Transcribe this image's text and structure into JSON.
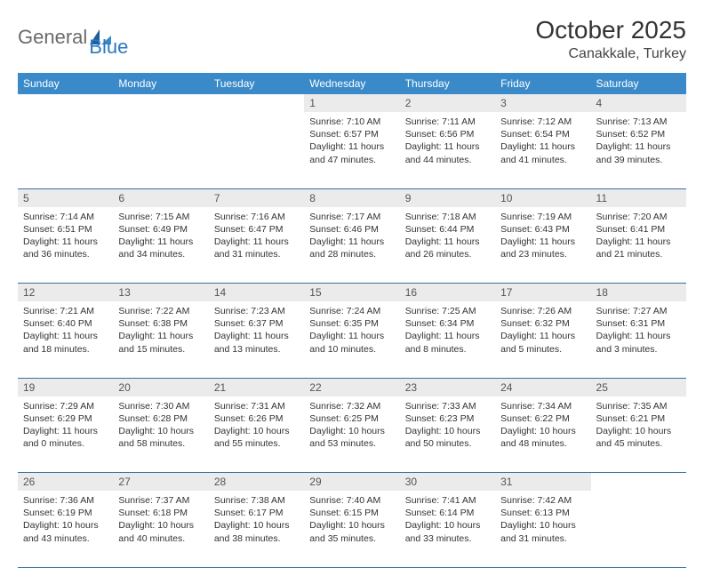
{
  "logo": {
    "word1": "General",
    "word2": "Blue"
  },
  "title": "October 2025",
  "location": "Canakkale, Turkey",
  "colors": {
    "header_bg": "#3a8ac9",
    "header_text": "#ffffff",
    "daynum_bg": "#ebebeb",
    "row_border": "#3a6f9e",
    "logo_gray": "#6a6a6a",
    "logo_blue": "#2b78c2"
  },
  "day_headers": [
    "Sunday",
    "Monday",
    "Tuesday",
    "Wednesday",
    "Thursday",
    "Friday",
    "Saturday"
  ],
  "weeks": [
    [
      null,
      null,
      null,
      {
        "n": "1",
        "sunrise": "7:10 AM",
        "sunset": "6:57 PM",
        "daylight": "11 hours and 47 minutes."
      },
      {
        "n": "2",
        "sunrise": "7:11 AM",
        "sunset": "6:56 PM",
        "daylight": "11 hours and 44 minutes."
      },
      {
        "n": "3",
        "sunrise": "7:12 AM",
        "sunset": "6:54 PM",
        "daylight": "11 hours and 41 minutes."
      },
      {
        "n": "4",
        "sunrise": "7:13 AM",
        "sunset": "6:52 PM",
        "daylight": "11 hours and 39 minutes."
      }
    ],
    [
      {
        "n": "5",
        "sunrise": "7:14 AM",
        "sunset": "6:51 PM",
        "daylight": "11 hours and 36 minutes."
      },
      {
        "n": "6",
        "sunrise": "7:15 AM",
        "sunset": "6:49 PM",
        "daylight": "11 hours and 34 minutes."
      },
      {
        "n": "7",
        "sunrise": "7:16 AM",
        "sunset": "6:47 PM",
        "daylight": "11 hours and 31 minutes."
      },
      {
        "n": "8",
        "sunrise": "7:17 AM",
        "sunset": "6:46 PM",
        "daylight": "11 hours and 28 minutes."
      },
      {
        "n": "9",
        "sunrise": "7:18 AM",
        "sunset": "6:44 PM",
        "daylight": "11 hours and 26 minutes."
      },
      {
        "n": "10",
        "sunrise": "7:19 AM",
        "sunset": "6:43 PM",
        "daylight": "11 hours and 23 minutes."
      },
      {
        "n": "11",
        "sunrise": "7:20 AM",
        "sunset": "6:41 PM",
        "daylight": "11 hours and 21 minutes."
      }
    ],
    [
      {
        "n": "12",
        "sunrise": "7:21 AM",
        "sunset": "6:40 PM",
        "daylight": "11 hours and 18 minutes."
      },
      {
        "n": "13",
        "sunrise": "7:22 AM",
        "sunset": "6:38 PM",
        "daylight": "11 hours and 15 minutes."
      },
      {
        "n": "14",
        "sunrise": "7:23 AM",
        "sunset": "6:37 PM",
        "daylight": "11 hours and 13 minutes."
      },
      {
        "n": "15",
        "sunrise": "7:24 AM",
        "sunset": "6:35 PM",
        "daylight": "11 hours and 10 minutes."
      },
      {
        "n": "16",
        "sunrise": "7:25 AM",
        "sunset": "6:34 PM",
        "daylight": "11 hours and 8 minutes."
      },
      {
        "n": "17",
        "sunrise": "7:26 AM",
        "sunset": "6:32 PM",
        "daylight": "11 hours and 5 minutes."
      },
      {
        "n": "18",
        "sunrise": "7:27 AM",
        "sunset": "6:31 PM",
        "daylight": "11 hours and 3 minutes."
      }
    ],
    [
      {
        "n": "19",
        "sunrise": "7:29 AM",
        "sunset": "6:29 PM",
        "daylight": "11 hours and 0 minutes."
      },
      {
        "n": "20",
        "sunrise": "7:30 AM",
        "sunset": "6:28 PM",
        "daylight": "10 hours and 58 minutes."
      },
      {
        "n": "21",
        "sunrise": "7:31 AM",
        "sunset": "6:26 PM",
        "daylight": "10 hours and 55 minutes."
      },
      {
        "n": "22",
        "sunrise": "7:32 AM",
        "sunset": "6:25 PM",
        "daylight": "10 hours and 53 minutes."
      },
      {
        "n": "23",
        "sunrise": "7:33 AM",
        "sunset": "6:23 PM",
        "daylight": "10 hours and 50 minutes."
      },
      {
        "n": "24",
        "sunrise": "7:34 AM",
        "sunset": "6:22 PM",
        "daylight": "10 hours and 48 minutes."
      },
      {
        "n": "25",
        "sunrise": "7:35 AM",
        "sunset": "6:21 PM",
        "daylight": "10 hours and 45 minutes."
      }
    ],
    [
      {
        "n": "26",
        "sunrise": "7:36 AM",
        "sunset": "6:19 PM",
        "daylight": "10 hours and 43 minutes."
      },
      {
        "n": "27",
        "sunrise": "7:37 AM",
        "sunset": "6:18 PM",
        "daylight": "10 hours and 40 minutes."
      },
      {
        "n": "28",
        "sunrise": "7:38 AM",
        "sunset": "6:17 PM",
        "daylight": "10 hours and 38 minutes."
      },
      {
        "n": "29",
        "sunrise": "7:40 AM",
        "sunset": "6:15 PM",
        "daylight": "10 hours and 35 minutes."
      },
      {
        "n": "30",
        "sunrise": "7:41 AM",
        "sunset": "6:14 PM",
        "daylight": "10 hours and 33 minutes."
      },
      {
        "n": "31",
        "sunrise": "7:42 AM",
        "sunset": "6:13 PM",
        "daylight": "10 hours and 31 minutes."
      },
      null
    ]
  ],
  "labels": {
    "sunrise": "Sunrise:",
    "sunset": "Sunset:",
    "daylight": "Daylight:"
  }
}
